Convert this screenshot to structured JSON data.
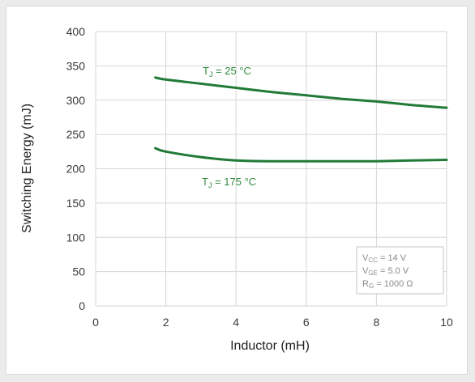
{
  "chart_data": {
    "type": "line",
    "title": "",
    "xlabel": "Inductor (mH)",
    "ylabel": "Switching Energy (mJ)",
    "xlim": [
      0,
      10
    ],
    "ylim": [
      0,
      400
    ],
    "xticks": [
      0,
      2,
      4,
      6,
      8,
      10
    ],
    "yticks": [
      0,
      50,
      100,
      150,
      200,
      250,
      300,
      350,
      400
    ],
    "grid": true,
    "line_color": "#217a38",
    "label_color": "#2e8b3e",
    "series": [
      {
        "label": {
          "main": "T",
          "sub": "J",
          "rest": " = 25 °C"
        },
        "x": [
          1.7,
          2,
          3,
          4,
          5,
          6,
          7,
          8,
          9,
          10
        ],
        "y": [
          333,
          330,
          324,
          318,
          312,
          307,
          302,
          298,
          293,
          289
        ]
      },
      {
        "label": {
          "main": "T",
          "sub": "J",
          "rest": " = 175 °C"
        },
        "x": [
          1.7,
          2,
          3,
          4,
          5,
          6,
          7,
          8,
          9,
          10
        ],
        "y": [
          230,
          225,
          217,
          212,
          211,
          211,
          211,
          211,
          212,
          213
        ]
      }
    ],
    "conditions": [
      {
        "main": "V",
        "sub": "CC",
        "rest": " = 14 V"
      },
      {
        "main": "V",
        "sub": "GE",
        "rest": " = 5.0 V"
      },
      {
        "main": "R",
        "sub": "G",
        "rest": " = 1000 Ω"
      }
    ]
  }
}
